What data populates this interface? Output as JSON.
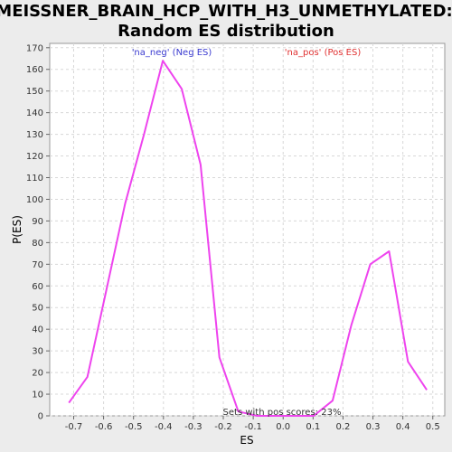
{
  "chart_data": {
    "type": "line",
    "title": "MEISSNER_BRAIN_HCP_WITH_H3_UNMETHYLATED:",
    "subtitle": "Random ES distribution",
    "xlabel": "ES",
    "ylabel": "P(ES)",
    "xlim": [
      -0.78,
      0.54
    ],
    "ylim": [
      0,
      172
    ],
    "x_ticks": [
      -0.7,
      -0.6,
      -0.5,
      -0.4,
      -0.3,
      -0.2,
      -0.1,
      0.0,
      0.1,
      0.2,
      0.3,
      0.4,
      0.5
    ],
    "x_tick_labels": [
      "-0.7",
      "-0.6",
      "-0.5",
      "-0.4",
      "-0.3",
      "-0.2",
      "-0.1",
      "0.0",
      "0.1",
      "0.2",
      "0.3",
      "0.4",
      "0.5"
    ],
    "y_ticks": [
      0,
      10,
      20,
      30,
      40,
      50,
      60,
      70,
      80,
      90,
      100,
      110,
      120,
      130,
      140,
      150,
      160,
      170
    ],
    "grid": true,
    "legend_neg": "'na_neg' (Neg ES)",
    "legend_pos": "'na_pos' (Pos ES)",
    "annotation": "Sets with pos scores: 23%",
    "colors": {
      "line": "#ee44ee",
      "neg": "#3a3ad0",
      "pos": "#e03030",
      "grid": "#d8d8d8"
    },
    "series": [
      {
        "x": [
          -0.716,
          -0.654,
          -0.591,
          -0.528,
          -0.465,
          -0.402,
          -0.339,
          -0.276,
          -0.213,
          -0.15,
          -0.087,
          -0.024,
          0.039,
          0.102,
          0.165,
          0.228,
          0.291,
          0.354,
          0.417,
          0.48
        ],
        "y": [
          6,
          18,
          58,
          98,
          130,
          164,
          151,
          116,
          27,
          2,
          0,
          0,
          0,
          0,
          7,
          42,
          70,
          76,
          25,
          12
        ]
      }
    ]
  }
}
